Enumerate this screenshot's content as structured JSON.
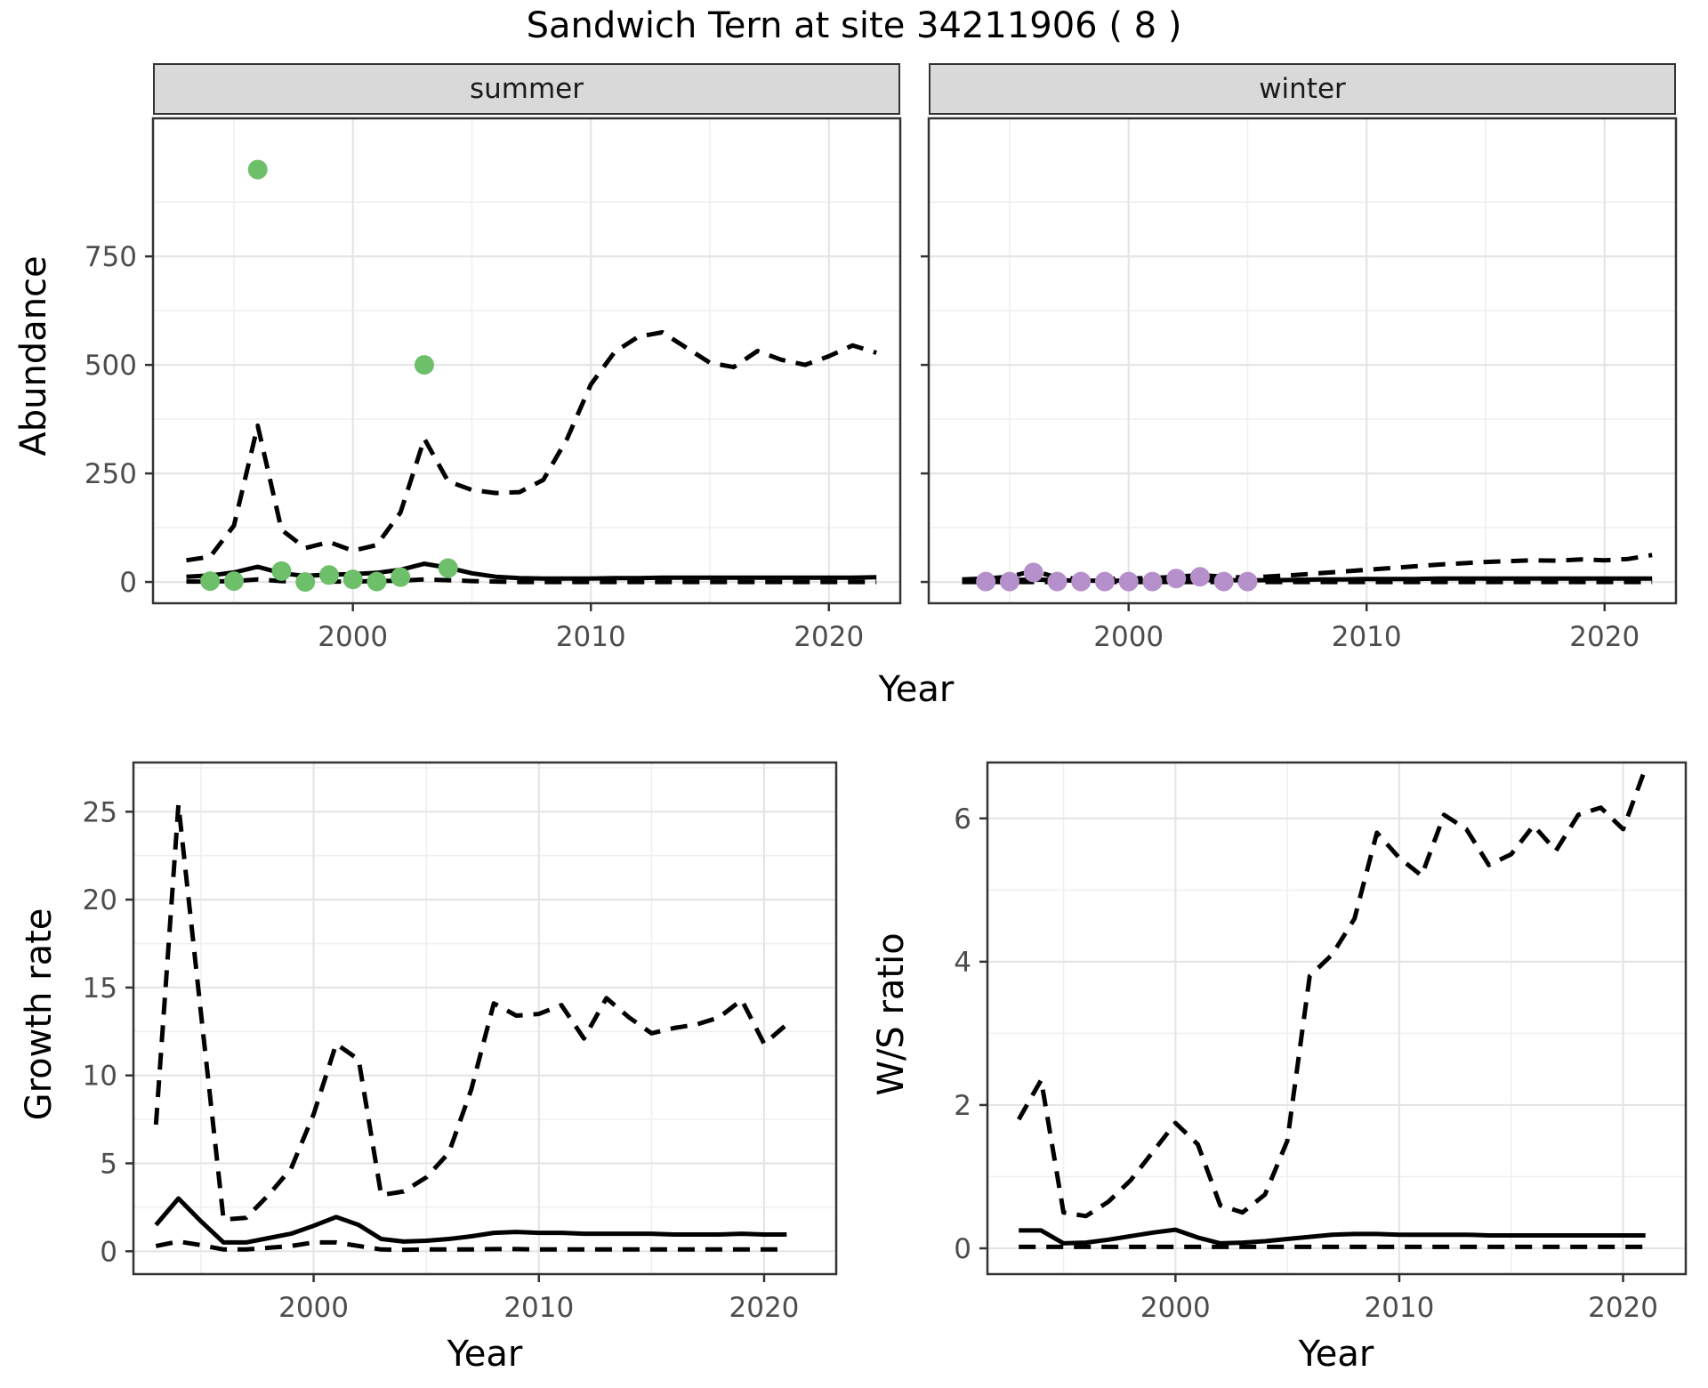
{
  "title": "Sandwich Tern at site 34211906 ( 8 )",
  "labels": {
    "year": "Year",
    "abundance": "Abundance",
    "growth_rate": "Growth rate",
    "ws_ratio": "W/S ratio",
    "facet_summer": "summer",
    "facet_winter": "winter"
  },
  "colors": {
    "summer_point": "#6dbf6a",
    "winter_point": "#b590cb",
    "line": "#000000",
    "panel_border": "#333333",
    "grid_major": "#e5e5e5",
    "grid_minor": "#f0f0f0",
    "strip_bg": "#d9d9d9",
    "axis_text": "#4d4d4d"
  },
  "chart_data": [
    {
      "id": "abundance_summer",
      "type": "line",
      "facet": "summer",
      "xlabel": "Year",
      "ylabel": "Abundance",
      "x_domain": [
        1991.6,
        2023.0
      ],
      "y_domain": [
        -49,
        1068
      ],
      "x_ticks": [
        2000,
        2010,
        2020
      ],
      "x_minor": [
        1995,
        2005,
        2015
      ],
      "y_ticks": [
        0,
        250,
        500,
        750
      ],
      "y_minor": [
        125,
        375,
        625,
        875
      ],
      "show_y_tick_labels": true,
      "grid": true,
      "legend": "none",
      "series": [
        {
          "name": "upper_ci",
          "style": "dashed",
          "x": [
            1993,
            1994,
            1995,
            1996,
            1997,
            1998,
            1999,
            2000,
            2001,
            2002,
            2003,
            2004,
            2005,
            2006,
            2007,
            2008,
            2009,
            2010,
            2011,
            2012,
            2013,
            2014,
            2015,
            2016,
            2017,
            2018,
            2019,
            2020,
            2021,
            2022
          ],
          "y": [
            50,
            58,
            130,
            360,
            120,
            78,
            92,
            72,
            85,
            160,
            330,
            232,
            212,
            205,
            207,
            235,
            330,
            455,
            530,
            565,
            575,
            540,
            505,
            495,
            532,
            512,
            500,
            520,
            545,
            528
          ]
        },
        {
          "name": "median",
          "style": "solid",
          "x": [
            1993,
            1994,
            1995,
            1996,
            1997,
            1998,
            1999,
            2000,
            2001,
            2002,
            2003,
            2004,
            2005,
            2006,
            2007,
            2008,
            2009,
            2010,
            2011,
            2012,
            2013,
            2014,
            2015,
            2016,
            2017,
            2018,
            2019,
            2020,
            2021,
            2022
          ],
          "y": [
            12,
            15,
            22,
            35,
            20,
            14,
            17,
            18,
            21,
            28,
            42,
            33,
            20,
            12,
            9,
            8,
            8,
            8,
            9,
            9,
            10,
            10,
            10,
            10,
            10,
            10,
            10,
            10,
            10,
            11
          ]
        },
        {
          "name": "lower_ci",
          "style": "dashed",
          "x": [
            1993,
            1994,
            1995,
            1996,
            1997,
            1998,
            1999,
            2000,
            2001,
            2002,
            2003,
            2004,
            2005,
            2006,
            2007,
            2008,
            2009,
            2010,
            2011,
            2012,
            2013,
            2014,
            2015,
            2016,
            2017,
            2018,
            2019,
            2020,
            2021,
            2022
          ],
          "y": [
            1,
            1,
            2,
            6,
            2,
            1,
            1,
            1,
            2,
            3,
            6,
            4,
            2,
            1,
            0,
            0,
            0,
            0,
            0,
            0,
            0,
            0,
            0,
            0,
            0,
            0,
            0,
            0,
            0,
            0
          ]
        }
      ],
      "points": {
        "name": "observed_counts",
        "color": "#6dbf6a",
        "x": [
          1994,
          1995,
          1996,
          1997,
          1998,
          1999,
          2000,
          2001,
          2002,
          2003,
          2004
        ],
        "y": [
          2,
          2,
          950,
          25,
          0,
          16,
          6,
          1,
          11,
          500,
          32
        ]
      }
    },
    {
      "id": "abundance_winter",
      "type": "line",
      "facet": "winter",
      "xlabel": "Year",
      "ylabel": "Abundance",
      "x_domain": [
        1991.6,
        2023.0
      ],
      "y_domain": [
        -49,
        1068
      ],
      "x_ticks": [
        2000,
        2010,
        2020
      ],
      "x_minor": [
        1995,
        2005,
        2015
      ],
      "y_ticks": [
        0,
        250,
        500,
        750
      ],
      "y_minor": [
        125,
        375,
        625,
        875
      ],
      "show_y_tick_labels": false,
      "grid": true,
      "legend": "none",
      "series": [
        {
          "name": "upper_ci",
          "style": "dashed",
          "x": [
            1993,
            1994,
            1995,
            1996,
            1997,
            1998,
            1999,
            2000,
            2001,
            2002,
            2003,
            2004,
            2005,
            2006,
            2007,
            2008,
            2009,
            2010,
            2011,
            2012,
            2013,
            2014,
            2015,
            2016,
            2017,
            2018,
            2019,
            2020,
            2021,
            2022
          ],
          "y": [
            6,
            8,
            12,
            26,
            10,
            7,
            7,
            8,
            9,
            12,
            16,
            12,
            10,
            13,
            16,
            20,
            24,
            28,
            32,
            36,
            40,
            43,
            46,
            48,
            50,
            49,
            52,
            50,
            53,
            62
          ]
        },
        {
          "name": "median",
          "style": "solid",
          "x": [
            1993,
            1994,
            1995,
            1996,
            1997,
            1998,
            1999,
            2000,
            2001,
            2002,
            2003,
            2004,
            2005,
            2006,
            2007,
            2008,
            2009,
            2010,
            2011,
            2012,
            2013,
            2014,
            2015,
            2016,
            2017,
            2018,
            2019,
            2020,
            2021,
            2022
          ],
          "y": [
            3,
            3,
            4,
            6,
            4,
            3,
            3,
            3,
            3,
            4,
            5,
            4,
            4,
            4,
            5,
            6,
            6,
            7,
            7,
            7,
            8,
            8,
            8,
            8,
            8,
            8,
            8,
            8,
            8,
            8
          ]
        },
        {
          "name": "lower_ci",
          "style": "dashed",
          "x": [
            1993,
            1994,
            1995,
            1996,
            1997,
            1998,
            1999,
            2000,
            2001,
            2002,
            2003,
            2004,
            2005,
            2006,
            2007,
            2008,
            2009,
            2010,
            2011,
            2012,
            2013,
            2014,
            2015,
            2016,
            2017,
            2018,
            2019,
            2020,
            2021,
            2022
          ],
          "y": [
            0,
            0,
            0,
            0,
            0,
            0,
            0,
            0,
            0,
            0,
            0,
            0,
            0,
            0,
            0,
            0,
            0,
            0,
            0,
            0,
            0,
            0,
            0,
            0,
            0,
            0,
            0,
            0,
            0,
            0
          ]
        }
      ],
      "points": {
        "name": "observed_counts",
        "color": "#b590cb",
        "x": [
          1994,
          1995,
          1996,
          1997,
          1998,
          1999,
          2000,
          2001,
          2002,
          2003,
          2004,
          2005
        ],
        "y": [
          1,
          1,
          22,
          1,
          1,
          1,
          1,
          1,
          8,
          12,
          1,
          1
        ]
      }
    },
    {
      "id": "growth_rate",
      "type": "line",
      "facet": null,
      "xlabel": "Year",
      "ylabel": "Growth rate",
      "x_domain": [
        1992.0,
        2023.2
      ],
      "y_domain": [
        -1.3,
        27.8
      ],
      "x_ticks": [
        2000,
        2010,
        2020
      ],
      "x_minor": [
        1995,
        2005,
        2015
      ],
      "y_ticks": [
        0,
        5,
        10,
        15,
        20,
        25
      ],
      "y_minor": [
        2.5,
        7.5,
        12.5,
        17.5,
        22.5,
        27.5
      ],
      "show_y_tick_labels": true,
      "grid": true,
      "legend": "none",
      "series": [
        {
          "name": "upper_ci",
          "style": "dashed",
          "x": [
            1993,
            1994,
            1995,
            1996,
            1997,
            1998,
            1999,
            2000,
            2001,
            2002,
            2003,
            2004,
            2005,
            2006,
            2007,
            2008,
            2009,
            2010,
            2011,
            2012,
            2013,
            2014,
            2015,
            2016,
            2017,
            2018,
            2019,
            2020,
            2021
          ],
          "y": [
            7.2,
            25.4,
            13.5,
            1.8,
            1.9,
            3.2,
            4.7,
            7.8,
            11.8,
            10.9,
            3.2,
            3.4,
            4.2,
            5.6,
            9.2,
            14.1,
            13.4,
            13.5,
            14.0,
            12.1,
            14.4,
            13.3,
            12.4,
            12.7,
            12.9,
            13.3,
            14.3,
            11.8,
            12.9
          ]
        },
        {
          "name": "median",
          "style": "solid",
          "x": [
            1993,
            1994,
            1995,
            1996,
            1997,
            1998,
            1999,
            2000,
            2001,
            2002,
            2003,
            2004,
            2005,
            2006,
            2007,
            2008,
            2009,
            2010,
            2011,
            2012,
            2013,
            2014,
            2015,
            2016,
            2017,
            2018,
            2019,
            2020,
            2021
          ],
          "y": [
            1.5,
            3.0,
            1.7,
            0.5,
            0.5,
            0.75,
            1.0,
            1.45,
            1.95,
            1.5,
            0.7,
            0.55,
            0.6,
            0.7,
            0.85,
            1.05,
            1.1,
            1.05,
            1.05,
            1.0,
            1.0,
            1.0,
            1.0,
            0.95,
            0.95,
            0.95,
            1.0,
            0.95,
            0.95
          ]
        },
        {
          "name": "lower_ci",
          "style": "dashed",
          "x": [
            1993,
            1994,
            1995,
            1996,
            1997,
            1998,
            1999,
            2000,
            2001,
            2002,
            2003,
            2004,
            2005,
            2006,
            2007,
            2008,
            2009,
            2010,
            2011,
            2012,
            2013,
            2014,
            2015,
            2016,
            2017,
            2018,
            2019,
            2020,
            2021
          ],
          "y": [
            0.3,
            0.55,
            0.35,
            0.1,
            0.1,
            0.2,
            0.3,
            0.5,
            0.5,
            0.3,
            0.1,
            0.08,
            0.1,
            0.1,
            0.1,
            0.12,
            0.12,
            0.1,
            0.1,
            0.1,
            0.1,
            0.1,
            0.1,
            0.1,
            0.1,
            0.1,
            0.1,
            0.1,
            0.1
          ]
        }
      ],
      "points": null
    },
    {
      "id": "ws_ratio",
      "type": "line",
      "facet": null,
      "xlabel": "Year",
      "ylabel": "W/S ratio",
      "x_domain": [
        1991.6,
        2022.8
      ],
      "y_domain": [
        -0.36,
        6.78
      ],
      "x_ticks": [
        2000,
        2010,
        2020
      ],
      "x_minor": [
        1995,
        2005,
        2015
      ],
      "y_ticks": [
        0,
        2,
        4,
        6
      ],
      "y_minor": [
        1,
        3,
        5
      ],
      "show_y_tick_labels": true,
      "grid": true,
      "legend": "none",
      "series": [
        {
          "name": "upper_ci",
          "style": "dashed",
          "x": [
            1993,
            1994,
            1995,
            1996,
            1997,
            1998,
            1999,
            2000,
            2001,
            2002,
            2003,
            2004,
            2005,
            2006,
            2007,
            2008,
            2009,
            2010,
            2011,
            2012,
            2013,
            2014,
            2015,
            2016,
            2017,
            2018,
            2019,
            2020,
            2021
          ],
          "y": [
            1.8,
            2.35,
            0.5,
            0.45,
            0.65,
            0.95,
            1.35,
            1.75,
            1.45,
            0.6,
            0.5,
            0.75,
            1.5,
            3.8,
            4.1,
            4.6,
            5.8,
            5.45,
            5.2,
            6.05,
            5.85,
            5.35,
            5.5,
            5.9,
            5.55,
            6.05,
            6.15,
            5.85,
            6.7
          ]
        },
        {
          "name": "median",
          "style": "solid",
          "x": [
            1993,
            1994,
            1995,
            1996,
            1997,
            1998,
            1999,
            2000,
            2001,
            2002,
            2003,
            2004,
            2005,
            2006,
            2007,
            2008,
            2009,
            2010,
            2011,
            2012,
            2013,
            2014,
            2015,
            2016,
            2017,
            2018,
            2019,
            2020,
            2021
          ],
          "y": [
            0.25,
            0.25,
            0.07,
            0.08,
            0.12,
            0.17,
            0.22,
            0.26,
            0.15,
            0.07,
            0.08,
            0.1,
            0.13,
            0.16,
            0.19,
            0.2,
            0.2,
            0.19,
            0.19,
            0.19,
            0.19,
            0.18,
            0.18,
            0.18,
            0.18,
            0.18,
            0.18,
            0.18,
            0.18
          ]
        },
        {
          "name": "lower_ci",
          "style": "dashed",
          "x": [
            1993,
            1994,
            1995,
            1996,
            1997,
            1998,
            1999,
            2000,
            2001,
            2002,
            2003,
            2004,
            2005,
            2006,
            2007,
            2008,
            2009,
            2010,
            2011,
            2012,
            2013,
            2014,
            2015,
            2016,
            2017,
            2018,
            2019,
            2020,
            2021
          ],
          "y": [
            0.02,
            0.02,
            0.02,
            0.02,
            0.02,
            0.02,
            0.02,
            0.02,
            0.02,
            0.02,
            0.02,
            0.02,
            0.02,
            0.02,
            0.02,
            0.02,
            0.02,
            0.02,
            0.02,
            0.02,
            0.02,
            0.02,
            0.02,
            0.02,
            0.02,
            0.02,
            0.02,
            0.02,
            0.02
          ]
        }
      ],
      "points": null
    }
  ]
}
